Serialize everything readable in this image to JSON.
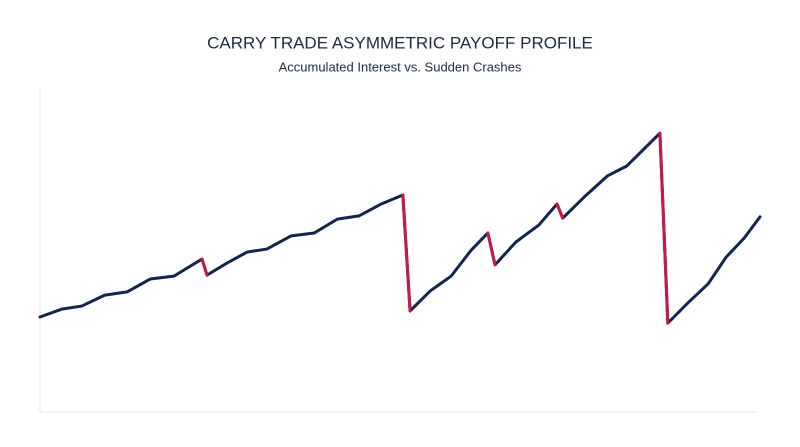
{
  "chart_data": {
    "type": "line",
    "title": "CARRY TRADE ASYMMETRIC PAYOFF PROFILE",
    "subtitle": "Accumulated Interest vs. Sudden Crashes",
    "x": [
      0,
      3.1,
      5.8,
      9.0,
      12.1,
      15.3,
      18.6,
      22.5,
      23.2,
      26.0,
      28.8,
      31.5,
      34.9,
      38.1,
      41.3,
      44.3,
      47.4,
      50.4,
      51.4,
      54.2,
      57.1,
      59.9,
      62.2,
      63.2,
      66.1,
      69.3,
      71.8,
      72.6,
      75.6,
      78.8,
      81.5,
      86.1,
      87.2,
      90.0,
      92.8,
      95.3,
      97.8,
      100
    ],
    "series": [
      {
        "color": "#12254a",
        "crash_color": "#c8174a",
        "values": [
          29.5,
          32.0,
          32.9,
          36.3,
          37.3,
          41.3,
          42.2,
          47.5,
          42.5,
          46.3,
          49.7,
          50.6,
          54.7,
          55.6,
          59.9,
          60.9,
          64.6,
          67.4,
          31.4,
          37.6,
          42.2,
          50.3,
          55.6,
          45.7,
          52.8,
          58.1,
          64.6,
          60.2,
          66.8,
          73.3,
          76.4,
          86.6,
          27.6,
          33.9,
          39.8,
          48.1,
          54.0,
          60.6
        ]
      }
    ],
    "xlim": [
      0,
      100
    ],
    "ylim": [
      0,
      100
    ]
  }
}
